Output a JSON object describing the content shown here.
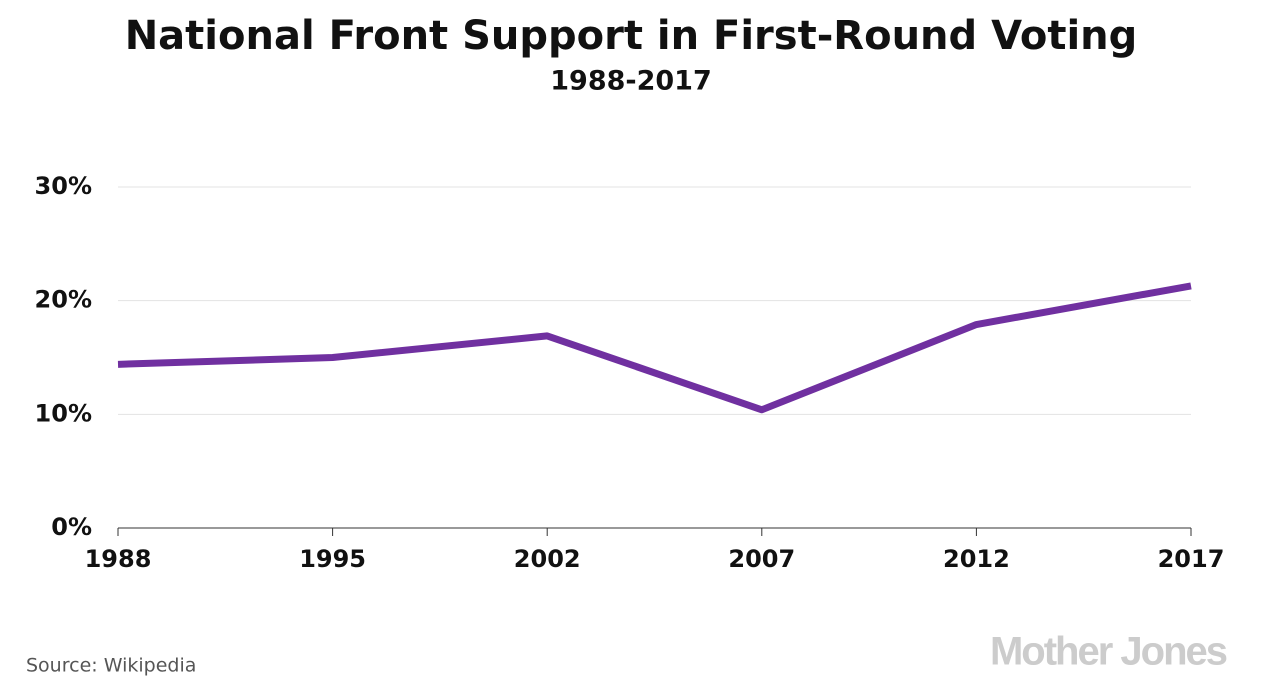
{
  "chart_data": {
    "type": "line",
    "title": "National Front Support in First-Round Voting",
    "subtitle": "1988-2017",
    "categories": [
      "1988",
      "1995",
      "2002",
      "2007",
      "2012",
      "2017"
    ],
    "values": [
      14.4,
      15.0,
      16.9,
      10.4,
      17.9,
      21.3
    ],
    "color": "#7030a0",
    "ylim": [
      0,
      30
    ],
    "yticks": [
      {
        "value": 0,
        "label": "0%"
      },
      {
        "value": 10,
        "label": "10%"
      },
      {
        "value": 20,
        "label": "20%"
      },
      {
        "value": 30,
        "label": "30%"
      }
    ],
    "grid": true,
    "source": "Source: Wikipedia",
    "logo": "Mother Jones"
  }
}
